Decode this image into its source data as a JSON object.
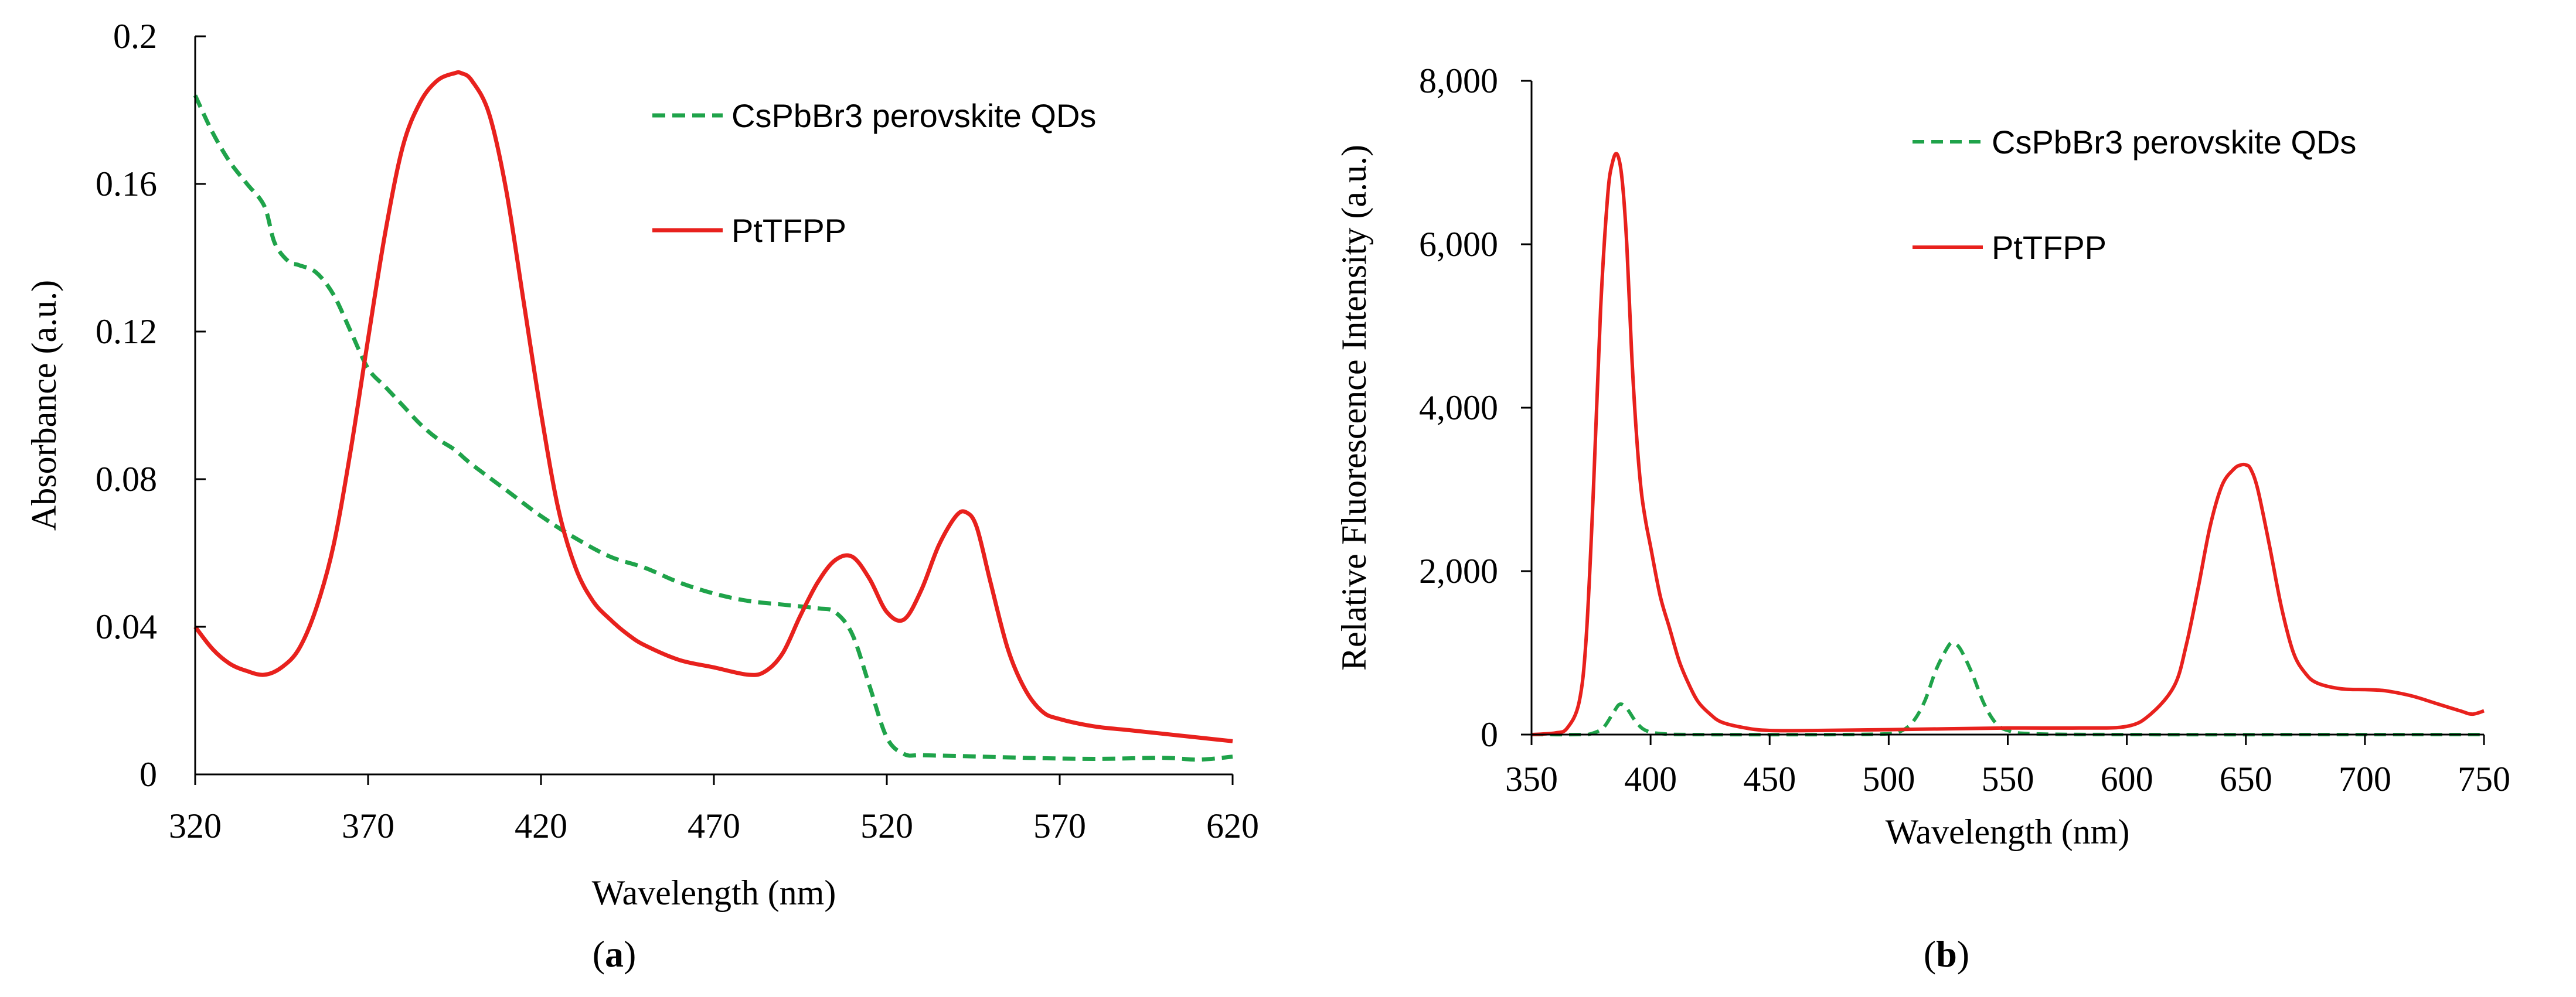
{
  "chart_data": [
    {
      "type": "line",
      "panel": "a",
      "xlabel": "Wavelength (nm)",
      "ylabel": "Absorbance (a.u.)",
      "xlim": [
        320,
        620
      ],
      "ylim": [
        0,
        0.2
      ],
      "xticks": [
        320,
        370,
        420,
        470,
        520,
        570,
        620
      ],
      "xtick_labels": [
        "320",
        "370",
        "420",
        "470",
        "520",
        "570",
        "620"
      ],
      "yticks": [
        0,
        0.04,
        0.08,
        0.12,
        0.16,
        0.2
      ],
      "ytick_labels": [
        "0",
        "0.04",
        "0.08",
        "0.12",
        "0.16",
        "0.2"
      ],
      "legend_position": "top-right",
      "grid": false,
      "series": [
        {
          "name": "CsPbBr3 perovskite QDs",
          "style": "dashed",
          "color": "#1fa34a",
          "x": [
            320,
            325,
            330,
            335,
            340,
            343,
            347,
            350,
            355,
            360,
            365,
            370,
            375,
            380,
            385,
            390,
            395,
            400,
            410,
            420,
            430,
            440,
            450,
            460,
            470,
            480,
            490,
            500,
            505,
            510,
            515,
            520,
            525,
            530,
            540,
            560,
            580,
            600,
            610,
            620
          ],
          "y": [
            0.184,
            0.174,
            0.166,
            0.16,
            0.154,
            0.144,
            0.139,
            0.138,
            0.136,
            0.13,
            0.12,
            0.11,
            0.105,
            0.1,
            0.095,
            0.091,
            0.088,
            0.084,
            0.077,
            0.07,
            0.064,
            0.059,
            0.056,
            0.052,
            0.049,
            0.047,
            0.046,
            0.045,
            0.044,
            0.038,
            0.024,
            0.01,
            0.0055,
            0.0052,
            0.005,
            0.0045,
            0.0042,
            0.0045,
            0.004,
            0.0048
          ]
        },
        {
          "name": "PtTFPP",
          "style": "solid",
          "color": "#e8211d",
          "x": [
            320,
            325,
            330,
            335,
            340,
            345,
            350,
            355,
            360,
            365,
            370,
            375,
            380,
            385,
            390,
            395,
            397,
            400,
            405,
            410,
            415,
            420,
            425,
            430,
            435,
            440,
            445,
            450,
            460,
            470,
            480,
            485,
            490,
            495,
            500,
            505,
            510,
            515,
            520,
            525,
            530,
            535,
            540,
            543,
            546,
            550,
            555,
            560,
            565,
            570,
            580,
            590,
            600,
            610,
            620
          ],
          "y": [
            0.04,
            0.034,
            0.03,
            0.028,
            0.027,
            0.029,
            0.034,
            0.045,
            0.062,
            0.088,
            0.118,
            0.147,
            0.17,
            0.182,
            0.188,
            0.19,
            0.19,
            0.188,
            0.179,
            0.158,
            0.128,
            0.098,
            0.072,
            0.056,
            0.047,
            0.042,
            0.038,
            0.035,
            0.031,
            0.029,
            0.027,
            0.028,
            0.033,
            0.043,
            0.052,
            0.058,
            0.059,
            0.053,
            0.044,
            0.042,
            0.05,
            0.062,
            0.07,
            0.071,
            0.067,
            0.052,
            0.034,
            0.023,
            0.017,
            0.015,
            0.013,
            0.012,
            0.011,
            0.01,
            0.009
          ]
        }
      ],
      "panel_label": "(a)",
      "panel_letter": "a"
    },
    {
      "type": "line",
      "panel": "b",
      "xlabel": "Wavelength (nm)",
      "ylabel": "Relative Fluorescence Intensity (a.u.)",
      "xlim": [
        350,
        750
      ],
      "ylim": [
        0,
        8000
      ],
      "xticks": [
        350,
        400,
        450,
        500,
        550,
        600,
        650,
        700,
        750
      ],
      "xtick_labels": [
        "350",
        "400",
        "450",
        "500",
        "550",
        "600",
        "650",
        "700",
        "750"
      ],
      "yticks": [
        0,
        2000,
        4000,
        6000,
        8000
      ],
      "ytick_labels": [
        "0",
        "2,000",
        "4,000",
        "6,000",
        "8,000"
      ],
      "legend_position": "top-right",
      "grid": false,
      "series": [
        {
          "name": "CsPbBr3 perovskite QDs",
          "style": "dashed",
          "color": "#1fa34a",
          "x": [
            350,
            370,
            375,
            380,
            384,
            387,
            390,
            394,
            398,
            405,
            420,
            480,
            500,
            505,
            510,
            515,
            520,
            525,
            527,
            530,
            535,
            540,
            545,
            550,
            560,
            600,
            700,
            750
          ],
          "y": [
            0,
            0,
            10,
            80,
            250,
            370,
            320,
            150,
            50,
            10,
            0,
            0,
            10,
            40,
            150,
            400,
            800,
            1080,
            1120,
            1050,
            750,
            380,
            140,
            50,
            10,
            0,
            0,
            0
          ]
        },
        {
          "name": "PtTFPP",
          "style": "solid",
          "color": "#e8211d",
          "x": [
            350,
            360,
            365,
            370,
            373,
            376,
            379,
            382,
            384,
            386,
            388,
            390,
            392,
            394,
            396,
            398,
            400,
            404,
            408,
            412,
            416,
            420,
            425,
            430,
            440,
            450,
            470,
            500,
            550,
            580,
            600,
            610,
            620,
            625,
            630,
            635,
            640,
            645,
            648,
            650,
            652,
            655,
            660,
            665,
            670,
            675,
            680,
            690,
            700,
            705,
            710,
            720,
            730,
            740,
            745,
            750
          ],
          "y": [
            0,
            20,
            80,
            400,
            1200,
            3000,
            5200,
            6600,
            7000,
            7100,
            6800,
            6000,
            4700,
            3700,
            3000,
            2600,
            2300,
            1700,
            1300,
            900,
            620,
            400,
            250,
            150,
            80,
            50,
            50,
            60,
            80,
            80,
            100,
            250,
            600,
            1100,
            1800,
            2550,
            3050,
            3250,
            3300,
            3300,
            3250,
            3000,
            2300,
            1550,
            1000,
            750,
            630,
            560,
            550,
            545,
            530,
            470,
            380,
            290,
            250,
            290
          ]
        }
      ],
      "panel_label": "(b)",
      "panel_letter": "b"
    }
  ]
}
